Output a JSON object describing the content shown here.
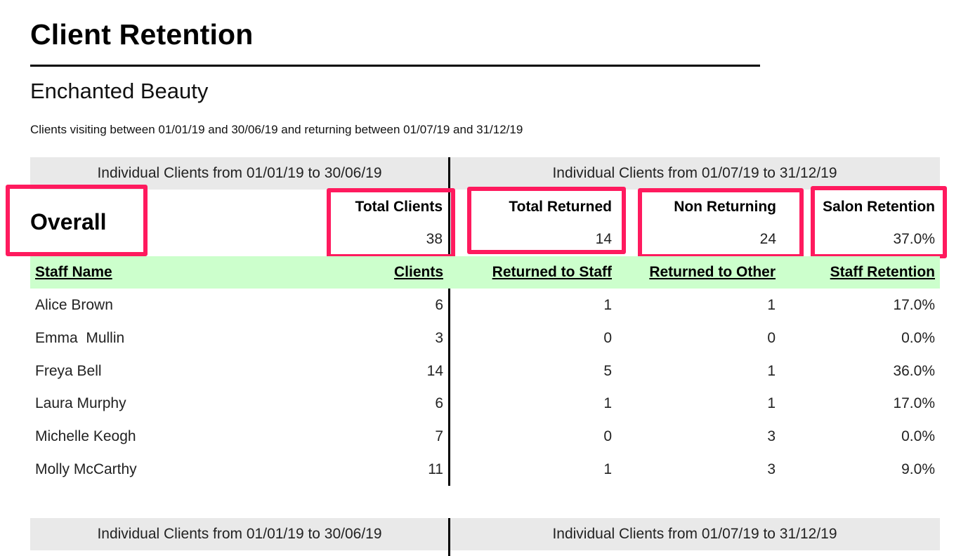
{
  "report": {
    "title": "Client Retention",
    "salon_name": "Enchanted Beauty",
    "subtitle": "Clients visiting between 01/01/19 and 30/06/19 and returning between 01/07/19 and 31/12/19"
  },
  "periods": {
    "first": "Individual Clients from 01/01/19 to 30/06/19",
    "second": "Individual Clients from 01/07/19 to 31/12/19"
  },
  "overall": {
    "label": "Overall",
    "total_clients_label": "Total Clients",
    "total_clients_value": "38",
    "total_returned_label": "Total Returned",
    "total_returned_value": "14",
    "non_returning_label": "Non Returning",
    "non_returning_value": "24",
    "salon_retention_label": "Salon Retention",
    "salon_retention_value": "37.0%"
  },
  "staff_table": {
    "headers": {
      "name": "Staff Name",
      "clients": "Clients",
      "returned_to_staff": "Returned to Staff",
      "returned_to_other": "Returned to Other",
      "staff_retention": "Staff Retention"
    },
    "rows": [
      {
        "name": "Alice Brown",
        "clients": "6",
        "returned_to_staff": "1",
        "returned_to_other": "1",
        "staff_retention": "17.0%"
      },
      {
        "name": "Emma  Mullin",
        "clients": "3",
        "returned_to_staff": "0",
        "returned_to_other": "0",
        "staff_retention": "0.0%"
      },
      {
        "name": "Freya Bell",
        "clients": "14",
        "returned_to_staff": "5",
        "returned_to_other": "1",
        "staff_retention": "36.0%"
      },
      {
        "name": "Laura Murphy",
        "clients": "6",
        "returned_to_staff": "1",
        "returned_to_other": "1",
        "staff_retention": "17.0%"
      },
      {
        "name": "Michelle Keogh",
        "clients": "7",
        "returned_to_staff": "0",
        "returned_to_other": "3",
        "staff_retention": "0.0%"
      },
      {
        "name": "Molly McCarthy",
        "clients": "11",
        "returned_to_staff": "1",
        "returned_to_other": "3",
        "staff_retention": "9.0%"
      }
    ]
  },
  "next_section": {
    "first": "Individual Clients from 01/01/19 to 30/06/19",
    "second": "Individual Clients from 01/07/19 to 31/12/19"
  },
  "colors": {
    "highlight_border": "#ff1a5e",
    "header_green": "#ccffcc",
    "period_gray": "#e9e9e9"
  }
}
